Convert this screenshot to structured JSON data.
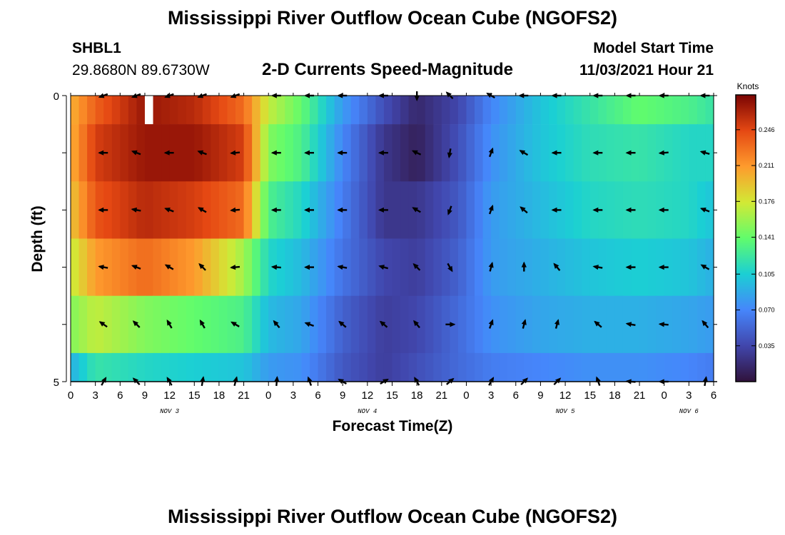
{
  "header": {
    "title": "Mississippi River Outflow Ocean Cube (NGOFS2)",
    "station": "SHBL1",
    "coords": "29.8680N  89.6730W",
    "subtitle": "2-D Currents Speed-Magnitude",
    "model_label": "Model Start Time",
    "model_time": "11/03/2021 Hour 21",
    "footer_title": "Mississippi River Outflow Ocean Cube (NGOFS2)"
  },
  "colors": {
    "ramp": [
      "#30123b",
      "#4146ac",
      "#4686fb",
      "#1bcfd4",
      "#61fc6c",
      "#d2e935",
      "#fe9b2d",
      "#e54813",
      "#7a0403"
    ]
  },
  "chart_data": {
    "type": "heatmap",
    "xlabel": "Forecast Time(Z)",
    "ylabel": "Depth (ft)",
    "colorbar_label": "Knots",
    "colorbar_ticks": [
      "0.246",
      "0.211",
      "0.176",
      "0.141",
      "0.105",
      "0.070",
      "0.035"
    ],
    "colorbar_range": [
      0,
      0.28
    ],
    "x_range_hours": [
      0,
      78
    ],
    "x_tick_labels": [
      "0",
      "3",
      "6",
      "9",
      "12",
      "15",
      "18",
      "21",
      "0",
      "3",
      "6",
      "9",
      "12",
      "15",
      "18",
      "21",
      "0",
      "3",
      "6",
      "9",
      "12",
      "15",
      "18",
      "21",
      "0",
      "3",
      "6"
    ],
    "day_labels": [
      "NOV 3",
      "NOV 4",
      "NOV 5",
      "NOV 6"
    ],
    "y_tick_labels": [
      "0",
      "5"
    ],
    "y_range": [
      0,
      5
    ],
    "depths": [
      0,
      1,
      2,
      3,
      4,
      5
    ],
    "speed_keyframes_hours": [
      0,
      3,
      9,
      15,
      21,
      24,
      28,
      33,
      38,
      42,
      47,
      51,
      57,
      63,
      69,
      75,
      78
    ],
    "speed_keyframes_by_depth": [
      [
        0.2,
        0.235,
        0.27,
        0.26,
        0.23,
        0.17,
        0.14,
        0.08,
        0.04,
        0.015,
        0.035,
        0.07,
        0.1,
        0.12,
        0.14,
        0.13,
        0.12
      ],
      [
        0.2,
        0.25,
        0.27,
        0.27,
        0.25,
        0.15,
        0.13,
        0.07,
        0.025,
        0.01,
        0.04,
        0.075,
        0.1,
        0.115,
        0.12,
        0.11,
        0.11
      ],
      [
        0.19,
        0.24,
        0.26,
        0.25,
        0.23,
        0.13,
        0.11,
        0.065,
        0.025,
        0.025,
        0.045,
        0.08,
        0.095,
        0.11,
        0.115,
        0.11,
        0.1
      ],
      [
        0.17,
        0.21,
        0.23,
        0.21,
        0.16,
        0.11,
        0.095,
        0.06,
        0.035,
        0.03,
        0.05,
        0.08,
        0.09,
        0.1,
        0.105,
        0.1,
        0.09
      ],
      [
        0.15,
        0.17,
        0.15,
        0.14,
        0.13,
        0.095,
        0.085,
        0.05,
        0.03,
        0.035,
        0.055,
        0.075,
        0.085,
        0.09,
        0.09,
        0.085,
        0.08
      ],
      [
        0.09,
        0.12,
        0.11,
        0.105,
        0.1,
        0.08,
        0.075,
        0.045,
        0.03,
        0.04,
        0.055,
        0.065,
        0.07,
        0.075,
        0.075,
        0.07,
        0.065
      ]
    ],
    "missing_cell": {
      "hour": 9,
      "depth": 0
    },
    "arrow_hours": [
      4,
      8,
      12,
      16,
      20,
      25,
      29,
      33,
      38,
      42,
      46,
      51,
      55,
      59,
      64,
      68,
      72,
      77
    ],
    "arrow_dirs_deg_by_depth": [
      [
        250,
        250,
        250,
        250,
        250,
        270,
        270,
        270,
        270,
        180,
        315,
        300,
        270,
        270,
        270,
        270,
        270,
        270
      ],
      [
        270,
        290,
        270,
        290,
        265,
        270,
        270,
        270,
        270,
        295,
        190,
        20,
        300,
        270,
        270,
        270,
        265,
        285
      ],
      [
        270,
        280,
        290,
        300,
        265,
        270,
        270,
        270,
        270,
        300,
        200,
        20,
        310,
        270,
        270,
        270,
        270,
        290
      ],
      [
        280,
        290,
        300,
        315,
        265,
        275,
        270,
        280,
        285,
        315,
        150,
        15,
        0,
        320,
        280,
        270,
        270,
        300
      ],
      [
        305,
        315,
        330,
        330,
        300,
        320,
        290,
        310,
        310,
        320,
        90,
        20,
        15,
        15,
        310,
        280,
        275,
        320
      ],
      [
        30,
        315,
        330,
        10,
        15,
        5,
        340,
        300,
        60,
        330,
        50,
        30,
        45,
        45,
        340,
        275,
        270,
        10
      ]
    ]
  }
}
